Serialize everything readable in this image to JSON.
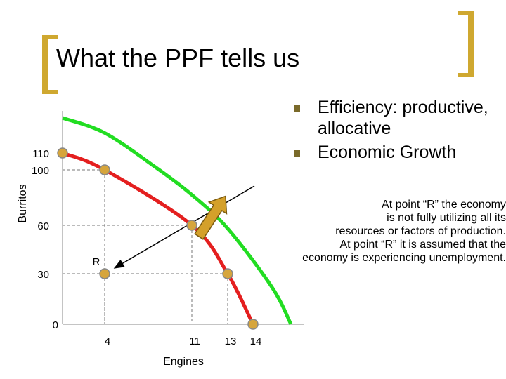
{
  "slide": {
    "title": "What the PPF tells us",
    "bullets": [
      "Efficiency: productive, allocative",
      "Economic Growth"
    ],
    "note_lines": [
      "At point “R” the economy",
      "is not fully utilizing all its",
      "resources or factors of production.",
      "At point “R” it is assumed that the",
      "economy is experiencing unemployment."
    ]
  },
  "colors": {
    "accent": "#cfa830",
    "ppf": "#e41f1f",
    "ppf_new": "#22dd22",
    "point_fill": "#d6a53c",
    "growth_arrow": "#d4a02a",
    "bullet": "#7a6a2a"
  },
  "chart_data": {
    "type": "line",
    "xlabel": "Engines",
    "ylabel": "Burritos",
    "x_ticks": [
      "4",
      "11",
      "13",
      "14"
    ],
    "y_ticks": [
      "0",
      "30",
      "60",
      "100",
      "110"
    ],
    "series": [
      {
        "role": "ppf",
        "points": [
          [
            0,
            110
          ],
          [
            4,
            100
          ],
          [
            11,
            60
          ],
          [
            13,
            30
          ],
          [
            14,
            0
          ]
        ]
      },
      {
        "role": "shifted-ppf",
        "points": [
          [
            0,
            124
          ],
          [
            4,
            118
          ],
          [
            8,
            102
          ],
          [
            11,
            82
          ],
          [
            13,
            58
          ],
          [
            14.7,
            22
          ],
          [
            15.4,
            0
          ]
        ]
      }
    ],
    "annotations": [
      {
        "label": "R",
        "point": [
          4,
          30
        ]
      }
    ],
    "growth_arrow": {
      "from": [
        11,
        60
      ],
      "to": [
        12.8,
        80
      ]
    },
    "grid": false
  }
}
